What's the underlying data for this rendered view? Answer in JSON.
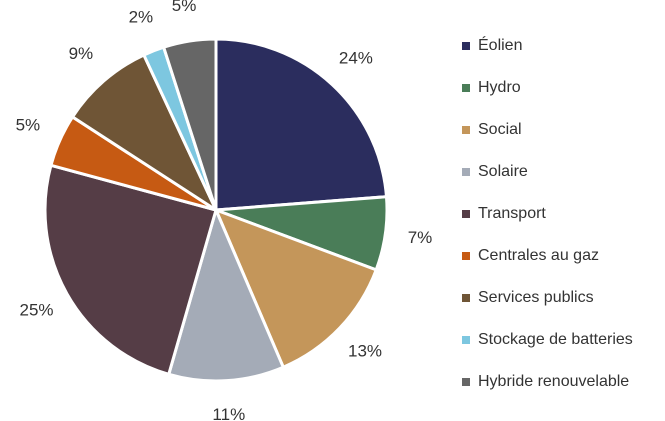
{
  "chart_data": {
    "type": "pie",
    "categories": [
      "Éolien",
      "Hydro",
      "Social",
      "Solaire",
      "Transport",
      "Centrales au gaz",
      "Services publics",
      "Stockage de batteries",
      "Hybride renouvelable"
    ],
    "values": [
      24,
      7,
      13,
      11,
      25,
      5,
      9,
      2,
      5
    ],
    "value_labels": [
      "24%",
      "7%",
      "13%",
      "11%",
      "25%",
      "5%",
      "9%",
      "2%",
      "5%"
    ],
    "colors": [
      "#2b2d5e",
      "#4a7d58",
      "#c4965a",
      "#a4abb7",
      "#553d46",
      "#c65a13",
      "#6f5536",
      "#7dc7e0",
      "#666666"
    ],
    "legend": "right"
  }
}
